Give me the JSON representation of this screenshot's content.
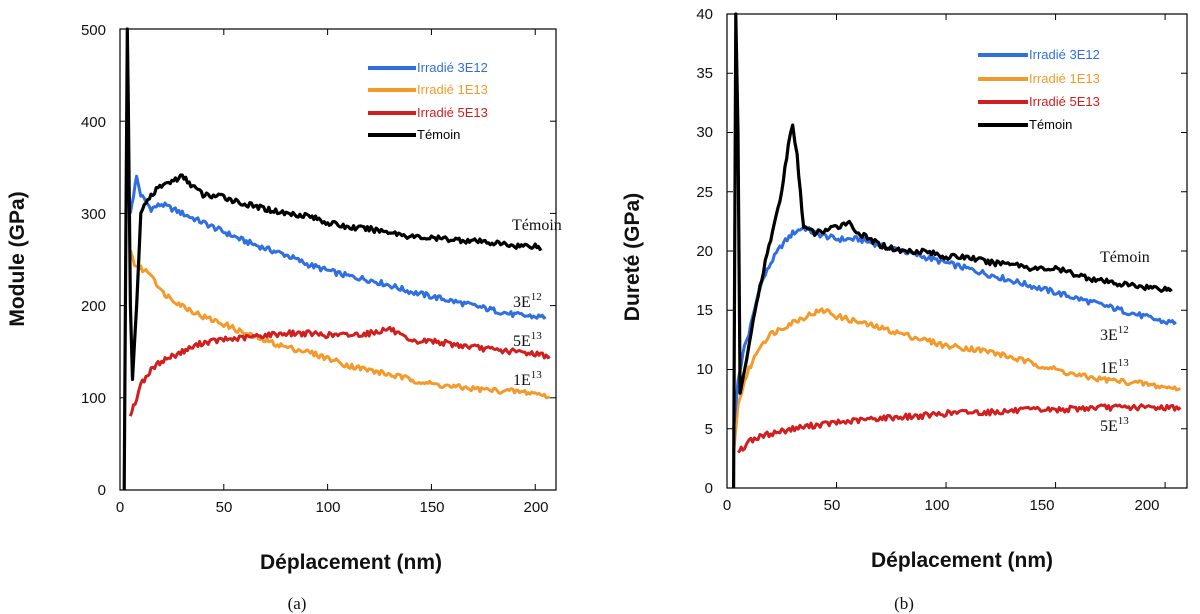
{
  "chart_data": [
    {
      "type": "line",
      "panel_caption": "(a)",
      "xlabel": "Déplacement (nm)",
      "ylabel": "Module (GPa)",
      "xlim": [
        0,
        210
      ],
      "ylim": [
        0,
        500
      ],
      "xticks": [
        "0",
        "50",
        "100",
        "150",
        "200"
      ],
      "yticks": [
        "0",
        "100",
        "200",
        "300",
        "400",
        "500"
      ],
      "legend": [
        {
          "label": "Irradié 3E12",
          "color": "#2f6fe0"
        },
        {
          "label": "Irradié 1E13",
          "color": "#f39a2a"
        },
        {
          "label": "Irradié 5E13",
          "color": "#d11f1f"
        },
        {
          "label": "Témoin",
          "color": "#000000"
        }
      ],
      "annotations": [
        {
          "text": "Témoin",
          "base": "Témoin",
          "sup": ""
        },
        {
          "text": "3E12",
          "base": "3E",
          "sup": "12"
        },
        {
          "text": "5E13",
          "base": "5E",
          "sup": "13"
        },
        {
          "text": "1E13",
          "base": "1E",
          "sup": "13"
        }
      ],
      "series": [
        {
          "name": "Irradié 3E12",
          "color": "#2f6fe0",
          "x": [
            5,
            8,
            10,
            15,
            20,
            30,
            40,
            50,
            60,
            70,
            80,
            90,
            100,
            110,
            120,
            130,
            140,
            150,
            160,
            170,
            180,
            190,
            200,
            205
          ],
          "y": [
            300,
            340,
            320,
            305,
            310,
            300,
            290,
            280,
            270,
            262,
            255,
            245,
            238,
            232,
            228,
            222,
            215,
            210,
            205,
            200,
            195,
            190,
            188,
            188
          ]
        },
        {
          "name": "Irradié 1E13",
          "color": "#f39a2a",
          "x": [
            5,
            7,
            10,
            15,
            20,
            30,
            40,
            50,
            60,
            70,
            80,
            90,
            100,
            110,
            120,
            130,
            140,
            150,
            160,
            170,
            180,
            190,
            200,
            207
          ],
          "y": [
            260,
            245,
            240,
            235,
            215,
            200,
            188,
            180,
            170,
            162,
            155,
            150,
            143,
            135,
            130,
            125,
            120,
            115,
            112,
            110,
            108,
            107,
            105,
            101
          ]
        },
        {
          "name": "Irradié 5E13",
          "color": "#d11f1f",
          "x": [
            5,
            8,
            10,
            15,
            20,
            30,
            40,
            50,
            60,
            70,
            80,
            90,
            100,
            110,
            120,
            130,
            140,
            150,
            160,
            170,
            180,
            190,
            200,
            207
          ],
          "y": [
            80,
            100,
            115,
            130,
            140,
            150,
            160,
            163,
            165,
            168,
            170,
            170,
            168,
            168,
            170,
            175,
            160,
            162,
            158,
            155,
            152,
            150,
            148,
            145
          ]
        },
        {
          "name": "Témoin",
          "color": "#000000",
          "x": [
            2,
            3.5,
            4,
            5,
            6,
            8,
            10,
            15,
            20,
            25,
            30,
            40,
            50,
            60,
            70,
            80,
            90,
            100,
            110,
            120,
            130,
            140,
            150,
            160,
            170,
            180,
            190,
            200,
            203
          ],
          "y": [
            0,
            500,
            420,
            200,
            120,
            200,
            300,
            320,
            330,
            335,
            340,
            320,
            318,
            310,
            305,
            300,
            298,
            290,
            285,
            283,
            280,
            275,
            273,
            272,
            270,
            268,
            265,
            265,
            262
          ]
        }
      ]
    },
    {
      "type": "line",
      "panel_caption": "(b)",
      "xlabel": "Déplacement (nm)",
      "ylabel": "Dureté (GPa)",
      "xlim": [
        0,
        210
      ],
      "ylim": [
        0,
        40
      ],
      "xticks": [
        "0",
        "50",
        "100",
        "150",
        "200"
      ],
      "yticks": [
        "0",
        "5",
        "10",
        "15",
        "20",
        "25",
        "30",
        "35",
        "40"
      ],
      "legend": [
        {
          "label": "Irradié 3E12",
          "color": "#2f6fe0"
        },
        {
          "label": "Irradié 1E13",
          "color": "#f39a2a"
        },
        {
          "label": "Irradié 5E13",
          "color": "#d11f1f"
        },
        {
          "label": "Témoin",
          "color": "#000000"
        }
      ],
      "annotations": [
        {
          "text": "Témoin",
          "base": "Témoin",
          "sup": ""
        },
        {
          "text": "3E12",
          "base": "3E",
          "sup": "12"
        },
        {
          "text": "1E13",
          "base": "1E",
          "sup": "13"
        },
        {
          "text": "5E13",
          "base": "5E",
          "sup": "13"
        }
      ],
      "series": [
        {
          "name": "Irradié 3E12",
          "color": "#2f6fe0",
          "x": [
            3,
            5,
            8,
            10,
            15,
            20,
            25,
            30,
            35,
            40,
            50,
            60,
            70,
            80,
            90,
            100,
            110,
            120,
            130,
            140,
            150,
            160,
            170,
            180,
            190,
            200,
            205
          ],
          "y": [
            5,
            9,
            12,
            13,
            17,
            19,
            20.5,
            21.5,
            22,
            21.5,
            21,
            21,
            20.5,
            20,
            19.5,
            19,
            18.5,
            18,
            17.5,
            17,
            16.5,
            16,
            15.5,
            15,
            14.5,
            14,
            14
          ]
        },
        {
          "name": "Irradié 1E13",
          "color": "#f39a2a",
          "x": [
            3,
            5,
            8,
            10,
            15,
            20,
            30,
            40,
            45,
            50,
            60,
            70,
            80,
            90,
            100,
            110,
            120,
            130,
            140,
            150,
            160,
            170,
            180,
            190,
            200,
            207
          ],
          "y": [
            3,
            7,
            9,
            10,
            12,
            13,
            14,
            14.8,
            15,
            14.5,
            14,
            13.5,
            13,
            12.5,
            12,
            11.8,
            11.5,
            11,
            10.5,
            10,
            9.5,
            9.2,
            9,
            8.8,
            8.5,
            8.4
          ]
        },
        {
          "name": "Irradié 5E13",
          "color": "#d11f1f",
          "x": [
            5,
            8,
            10,
            15,
            20,
            30,
            40,
            50,
            60,
            70,
            80,
            90,
            100,
            110,
            120,
            130,
            140,
            150,
            160,
            170,
            180,
            190,
            200,
            207
          ],
          "y": [
            3,
            3.5,
            4,
            4.3,
            4.6,
            5,
            5.3,
            5.5,
            5.7,
            5.9,
            6,
            6.1,
            6.3,
            6.4,
            6.4,
            6.5,
            6.6,
            6.6,
            6.7,
            6.8,
            6.8,
            6.8,
            6.8,
            6.8
          ]
        },
        {
          "name": "Témoin",
          "color": "#000000",
          "x": [
            3,
            4,
            5,
            6,
            8,
            10,
            12,
            15,
            20,
            25,
            28,
            30,
            32,
            35,
            40,
            50,
            55,
            60,
            70,
            80,
            90,
            100,
            110,
            120,
            130,
            140,
            150,
            160,
            170,
            180,
            190,
            200,
            203
          ],
          "y": [
            0,
            40,
            30,
            8,
            10,
            12,
            14,
            17,
            21,
            25,
            29,
            30.5,
            28,
            22,
            21.5,
            22,
            22.5,
            21.5,
            20.5,
            20,
            20,
            19.5,
            19.5,
            19,
            19,
            18.5,
            18.5,
            18,
            17.5,
            17.2,
            17,
            16.8,
            16.8
          ]
        }
      ]
    }
  ]
}
